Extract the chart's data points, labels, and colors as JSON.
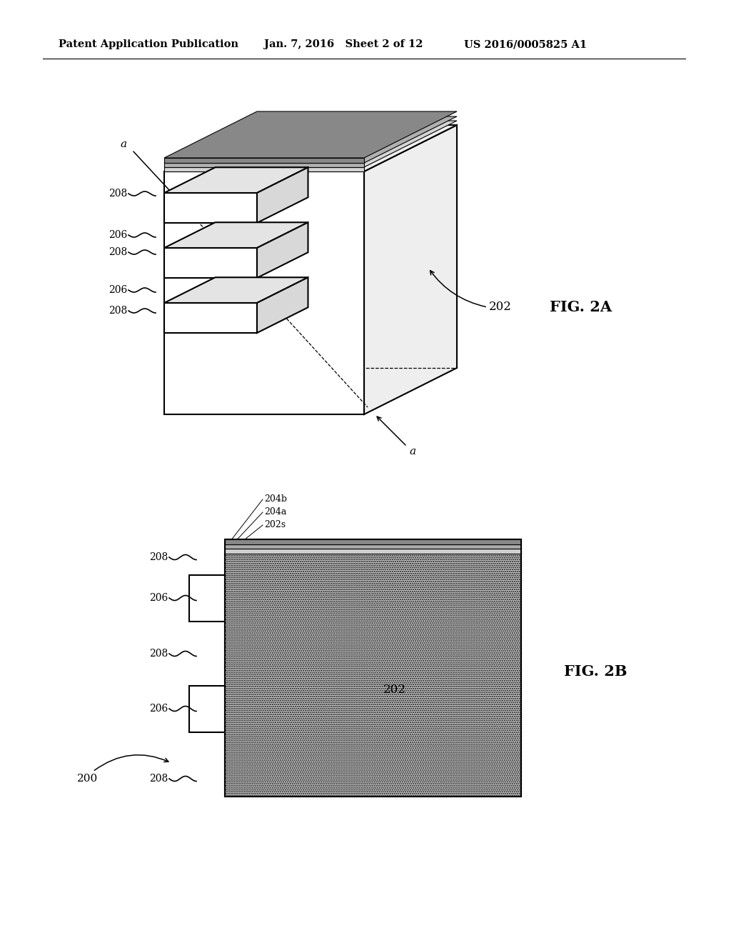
{
  "bg_color": "#ffffff",
  "header_left": "Patent Application Publication",
  "header_mid": "Jan. 7, 2016   Sheet 2 of 12",
  "header_right": "US 2016/0005825 A1",
  "fig_a_label": "FIG. 2A",
  "fig_b_label": "FIG. 2B",
  "label_200": "200",
  "label_202": "202",
  "label_202s": "202s",
  "label_204a": "204a",
  "label_204b": "204b",
  "label_206": "206",
  "label_208": "208",
  "line_color": "#000000"
}
